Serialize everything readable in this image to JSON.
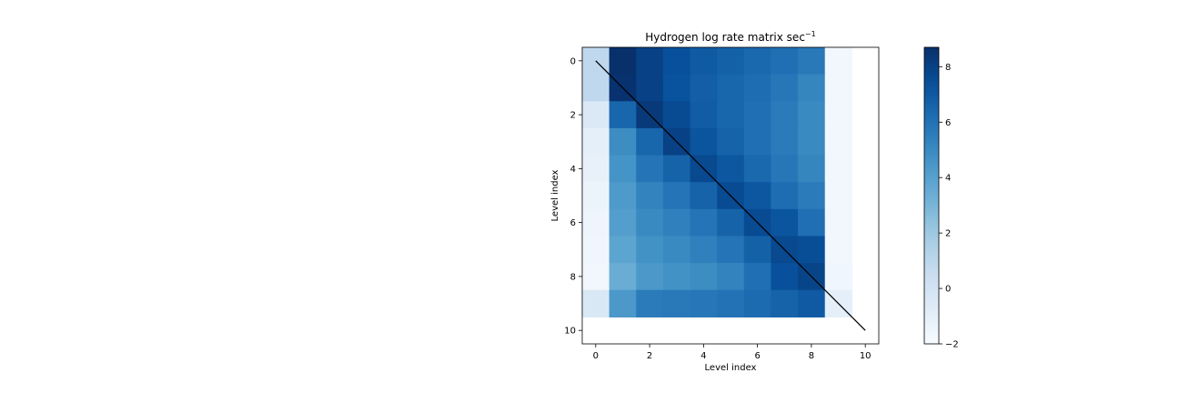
{
  "chart_data": {
    "type": "heatmap",
    "title": "Hydrogen log rate matrix sec",
    "title_superscript": "−1",
    "xlabel": "Level index",
    "ylabel": "Level index",
    "x_ticks": [
      0,
      2,
      4,
      6,
      8,
      10
    ],
    "y_ticks": [
      0,
      2,
      4,
      6,
      8,
      10
    ],
    "xlim": [
      -0.5,
      10.5
    ],
    "ylim": [
      10.5,
      -0.5
    ],
    "colormap": "Blues",
    "colorbar": {
      "min": -2,
      "max": 8.7,
      "ticks": [
        -2,
        0,
        2,
        4,
        6,
        8
      ]
    },
    "diagonal_line": {
      "from": [
        0,
        0
      ],
      "to": [
        10,
        10
      ],
      "color": "#000000"
    },
    "matrix": [
      [
        0.9,
        8.7,
        8.0,
        7.4,
        7.0,
        6.7,
        6.4,
        6.1,
        5.7,
        -1.7
      ],
      [
        0.9,
        8.6,
        8.0,
        7.3,
        6.8,
        6.5,
        6.2,
        5.8,
        5.2,
        -1.7
      ],
      [
        -0.5,
        6.5,
        8.3,
        7.6,
        6.9,
        6.5,
        6.1,
        5.6,
        5.0,
        -1.7
      ],
      [
        -1.0,
        4.9,
        6.5,
        8.0,
        7.2,
        6.6,
        6.1,
        5.6,
        5.0,
        -1.7
      ],
      [
        -1.2,
        4.6,
        5.9,
        6.6,
        7.7,
        7.1,
        6.4,
        5.8,
        5.2,
        -1.7
      ],
      [
        -1.4,
        4.3,
        5.3,
        5.9,
        6.6,
        7.6,
        7.1,
        6.2,
        5.6,
        -1.7
      ],
      [
        -1.5,
        4.1,
        5.0,
        5.4,
        5.9,
        6.6,
        7.6,
        7.2,
        6.1,
        -1.7
      ],
      [
        -1.6,
        3.8,
        4.7,
        5.0,
        5.4,
        5.9,
        6.7,
        7.7,
        7.5,
        -1.7
      ],
      [
        -1.7,
        3.4,
        4.4,
        4.7,
        4.9,
        5.3,
        6.1,
        7.4,
        7.9,
        -1.6
      ],
      [
        -0.4,
        4.4,
        5.6,
        5.7,
        5.8,
        6.0,
        6.3,
        6.6,
        7.0,
        -1.0
      ]
    ]
  }
}
